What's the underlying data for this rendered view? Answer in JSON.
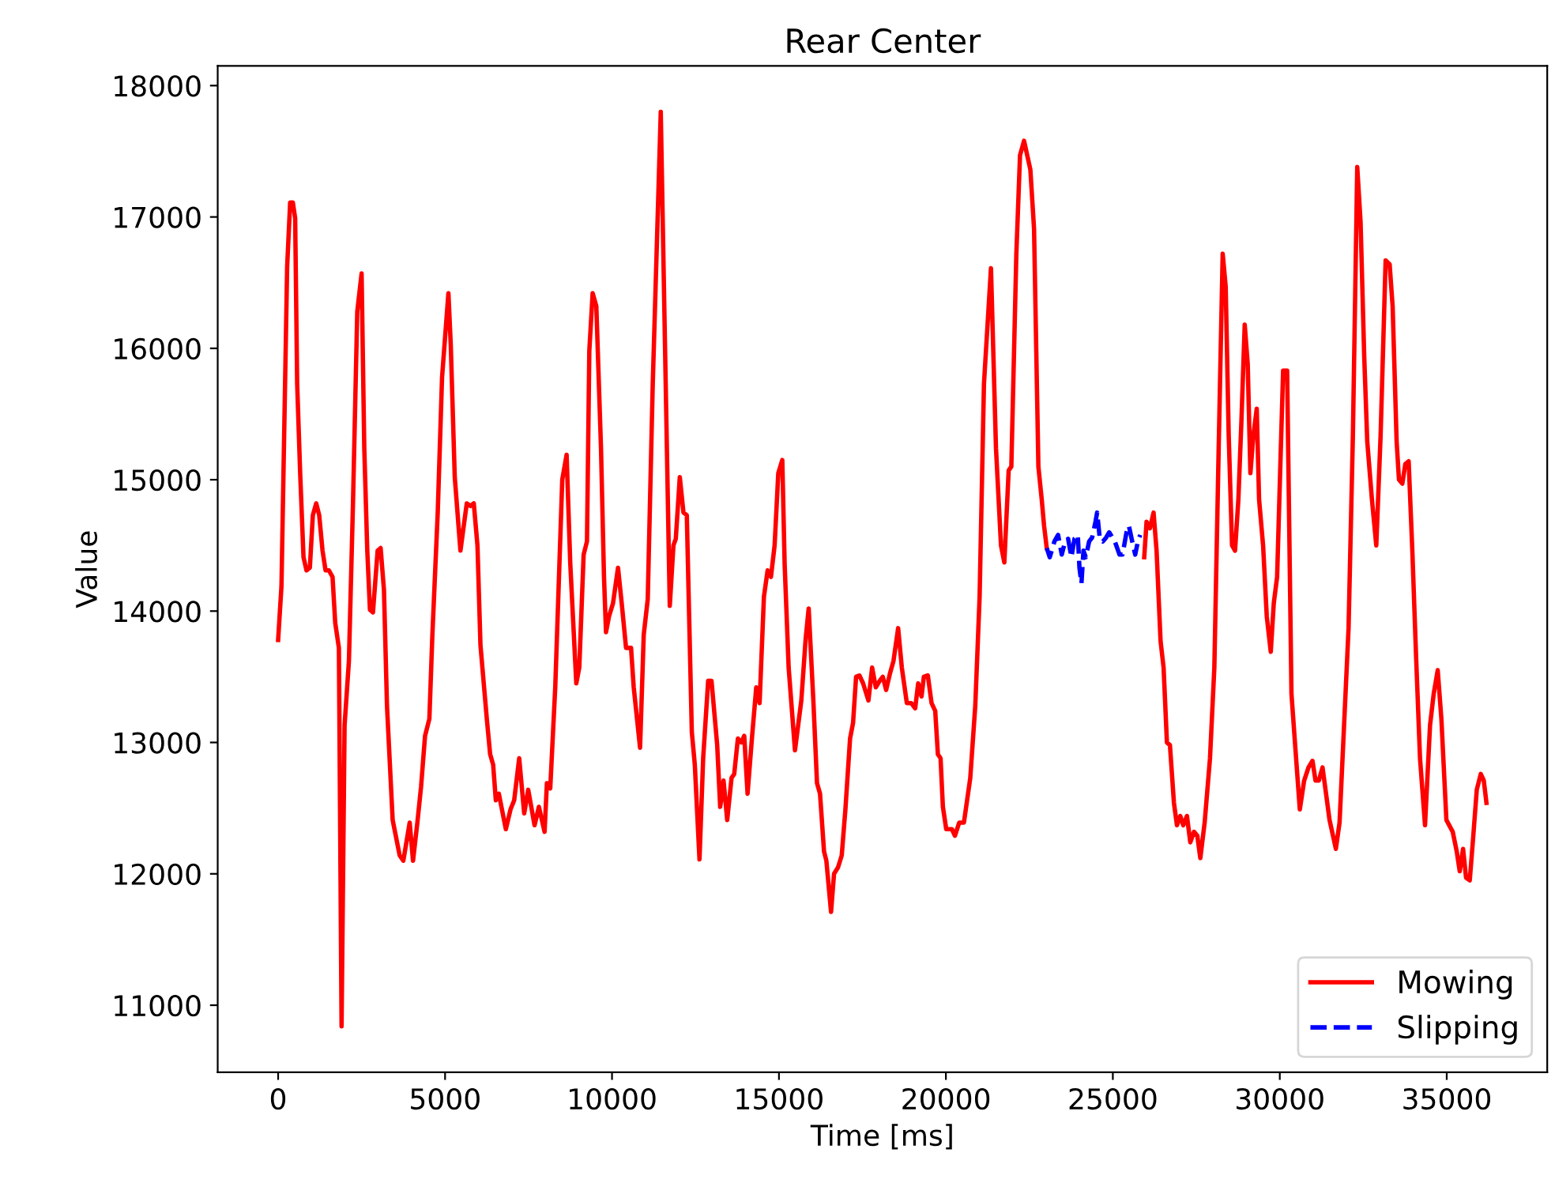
{
  "chart_data": {
    "type": "line",
    "title": "Rear Center",
    "xlabel": "Time [ms]",
    "ylabel": "Value",
    "xlim": [
      -1810,
      38010
    ],
    "ylim": [
      10490,
      18150
    ],
    "xticks": [
      0,
      5000,
      10000,
      15000,
      20000,
      25000,
      30000,
      35000
    ],
    "yticks": [
      11000,
      12000,
      13000,
      14000,
      15000,
      16000,
      17000,
      18000
    ],
    "grid": false,
    "legend": "bottom right",
    "marker": "none",
    "series": [
      {
        "name": "Mowing",
        "color": "#ff0000",
        "line_style": "solid",
        "x": [
          0,
          100,
          270,
          360,
          440,
          510,
          570,
          660,
          760,
          850,
          950,
          1040,
          1140,
          1230,
          1330,
          1420,
          1520,
          1630,
          1710,
          1820,
          1900,
          1990,
          2120,
          2240,
          2370,
          2500,
          2580,
          2670,
          2750,
          2840,
          2980,
          3070,
          3170,
          3260,
          3430,
          3640,
          3750,
          3940,
          4040,
          4170,
          4280,
          4400,
          4530,
          4620,
          4780,
          4910,
          5100,
          5170,
          5290,
          5460,
          5650,
          5760,
          5860,
          5970,
          6060,
          6250,
          6350,
          6440,
          6520,
          6610,
          6820,
          6960,
          7070,
          7220,
          7370,
          7490,
          7680,
          7810,
          7980,
          8050,
          8150,
          8300,
          8510,
          8640,
          8750,
          8930,
          9020,
          9150,
          9250,
          9320,
          9420,
          9530,
          9670,
          9760,
          9820,
          9910,
          10030,
          10180,
          10290,
          10420,
          10570,
          10650,
          10840,
          10950,
          11070,
          11220,
          11460,
          11590,
          11730,
          11840,
          11910,
          12030,
          12140,
          12240,
          12390,
          12480,
          12620,
          12730,
          12880,
          12980,
          13150,
          13240,
          13340,
          13450,
          13580,
          13660,
          13770,
          13870,
          13960,
          14060,
          14190,
          14320,
          14420,
          14550,
          14660,
          14760,
          14870,
          14980,
          15100,
          15170,
          15290,
          15480,
          15670,
          15800,
          15890,
          16030,
          16140,
          16230,
          16350,
          16420,
          16560,
          16650,
          16770,
          16880,
          16990,
          17130,
          17220,
          17310,
          17410,
          17520,
          17680,
          17790,
          17900,
          18020,
          18110,
          18210,
          18320,
          18430,
          18570,
          18680,
          18830,
          18960,
          19080,
          19170,
          19270,
          19340,
          19460,
          19570,
          19680,
          19760,
          19840,
          19910,
          20010,
          20180,
          20270,
          20400,
          20540,
          20730,
          20880,
          21010,
          21140,
          21350,
          21500,
          21650,
          21750,
          21880,
          21960,
          22110,
          22220,
          22340,
          22530,
          22640,
          22770,
          22870,
          22940,
          23020,
          24480,
          25940,
          26010,
          26110,
          26220,
          26310,
          26430,
          26520,
          26620,
          26710,
          26830,
          26920,
          27020,
          27110,
          27220,
          27320,
          27430,
          27530,
          27620,
          27750,
          27910,
          28040,
          28170,
          28290,
          28380,
          28470,
          28570,
          28660,
          28760,
          28850,
          28950,
          29040,
          29120,
          29210,
          29310,
          29380,
          29500,
          29610,
          29730,
          29820,
          29920,
          30010,
          30100,
          30220,
          30350,
          30460,
          30600,
          30730,
          30860,
          30980,
          31070,
          31170,
          31280,
          31370,
          31490,
          31680,
          31790,
          31920,
          32060,
          32190,
          32320,
          32420,
          32530,
          32620,
          32760,
          32890,
          33020,
          33170,
          33290,
          33380,
          33500,
          33570,
          33670,
          33760,
          33860,
          33970,
          34080,
          34200,
          34350,
          34500,
          34610,
          34730,
          34840,
          34990,
          35180,
          35300,
          35390,
          35490,
          35580,
          35690,
          35790,
          35900,
          36020,
          36110,
          36190
        ],
        "values": [
          13780,
          14190,
          16620,
          17110,
          17110,
          16990,
          15730,
          15050,
          14410,
          14310,
          14330,
          14730,
          14820,
          14730,
          14460,
          14310,
          14310,
          14260,
          13910,
          13720,
          10840,
          13130,
          13620,
          14800,
          16280,
          16570,
          15240,
          14460,
          14010,
          13990,
          14460,
          14480,
          14160,
          13280,
          12410,
          12140,
          12100,
          12390,
          12100,
          12390,
          12660,
          13050,
          13180,
          13820,
          14750,
          15780,
          16420,
          16030,
          15020,
          14460,
          14820,
          14800,
          14820,
          14500,
          13740,
          13180,
          12910,
          12830,
          12560,
          12610,
          12340,
          12490,
          12560,
          12880,
          12460,
          12640,
          12370,
          12510,
          12320,
          12690,
          12650,
          13420,
          15000,
          15190,
          14360,
          13450,
          13570,
          14430,
          14530,
          15980,
          16420,
          16320,
          15240,
          14260,
          13840,
          13960,
          14060,
          14330,
          14060,
          13720,
          13720,
          13420,
          12960,
          13820,
          14090,
          15730,
          17800,
          15980,
          14040,
          14500,
          14550,
          15020,
          14750,
          14730,
          13080,
          12830,
          12110,
          12880,
          13470,
          13470,
          12980,
          12510,
          12710,
          12410,
          12730,
          12760,
          13030,
          13000,
          13050,
          12610,
          13030,
          13420,
          13300,
          14110,
          14310,
          14260,
          14500,
          15050,
          15150,
          14360,
          13570,
          12940,
          13320,
          13790,
          14020,
          13320,
          12690,
          12610,
          12170,
          12100,
          11710,
          12000,
          12050,
          12140,
          12490,
          13030,
          13150,
          13500,
          13510,
          13450,
          13320,
          13570,
          13420,
          13470,
          13500,
          13400,
          13520,
          13620,
          13870,
          13570,
          13300,
          13300,
          13260,
          13450,
          13350,
          13500,
          13510,
          13300,
          13240,
          12910,
          12880,
          12510,
          12340,
          12340,
          12290,
          12390,
          12390,
          12730,
          13280,
          14110,
          15730,
          16610,
          15240,
          14500,
          14370,
          15070,
          15100,
          16720,
          17470,
          17580,
          17360,
          16910,
          15100,
          14850,
          14650,
          14480,
          null,
          14410,
          14680,
          14630,
          14750,
          14460,
          13770,
          13570,
          13000,
          12980,
          12540,
          12370,
          12440,
          12370,
          12440,
          12240,
          12320,
          12290,
          12120,
          12390,
          12880,
          13570,
          15240,
          16720,
          16470,
          15340,
          14500,
          14460,
          14850,
          15440,
          16180,
          15880,
          15050,
          15340,
          15540,
          14850,
          14500,
          13960,
          13690,
          14060,
          14260,
          15050,
          15830,
          15830,
          13370,
          12980,
          12490,
          12710,
          12810,
          12860,
          12710,
          12710,
          12810,
          12640,
          12410,
          12190,
          12390,
          13100,
          13870,
          15340,
          17380,
          16960,
          15930,
          15290,
          14850,
          14500,
          15340,
          16670,
          16640,
          16320,
          15290,
          15000,
          14970,
          15120,
          15140,
          14460,
          13670,
          12880,
          12370,
          13130,
          13370,
          13550,
          13180,
          12410,
          12320,
          12170,
          12020,
          12190,
          11970,
          11950,
          12270,
          12640,
          12760,
          12710,
          12540
        ]
      },
      {
        "name": "Slipping",
        "color": "#0000ff",
        "line_style": "dashed",
        "x": [
          23020,
          23110,
          23250,
          23360,
          23470,
          23570,
          23660,
          23760,
          23850,
          23950,
          24000,
          24060,
          24120,
          24190,
          24290,
          24380,
          24480,
          24530,
          24610,
          24700,
          24800,
          24890,
          25060,
          25200,
          25290,
          25410,
          25480,
          25580,
          25670,
          25750,
          25820
        ],
        "values": [
          14480,
          14410,
          14530,
          14580,
          14430,
          14530,
          14550,
          14410,
          14550,
          14580,
          14330,
          14210,
          14460,
          14410,
          14530,
          14560,
          14680,
          14750,
          14550,
          14530,
          14560,
          14600,
          14530,
          14430,
          14430,
          14600,
          14650,
          14530,
          14430,
          14530,
          14580
        ]
      }
    ]
  }
}
